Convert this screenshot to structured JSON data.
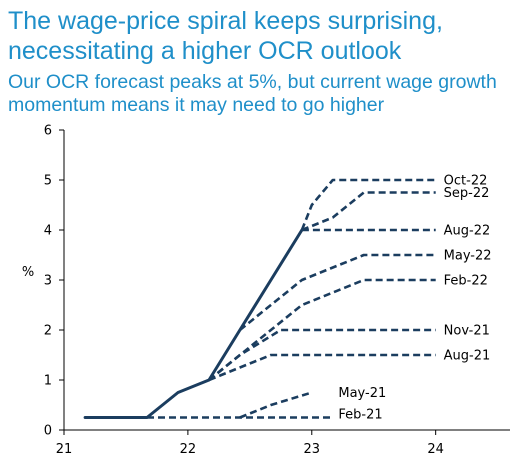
{
  "title": "The wage-price spiral keeps surprising, necessitating a higher OCR outlook",
  "subtitle": "Our OCR forecast peaks at 5%, but current wage growth momentum means it may need to go higher",
  "chart_data": {
    "type": "line",
    "ylabel": "%",
    "xlim": [
      21,
      24.6
    ],
    "ylim": [
      0,
      6
    ],
    "xticks": [
      21,
      22,
      23,
      24
    ],
    "yticks": [
      0,
      1,
      2,
      3,
      4,
      5,
      6
    ],
    "actual": {
      "x": [
        21.17,
        21.67,
        21.92,
        22.17,
        22.42,
        22.67,
        22.92
      ],
      "y": [
        0.25,
        0.25,
        0.75,
        1.0,
        2.0,
        3.0,
        4.0
      ]
    },
    "series": [
      {
        "name": "Oct-22",
        "x": [
          22.92,
          23.0,
          23.17,
          24.0
        ],
        "y": [
          4.0,
          4.5,
          5.0,
          5.0
        ]
      },
      {
        "name": "Sep-22",
        "x": [
          22.92,
          23.17,
          23.42,
          24.0
        ],
        "y": [
          4.0,
          4.25,
          4.75,
          4.75
        ]
      },
      {
        "name": "Aug-22",
        "x": [
          22.92,
          23.0,
          24.0
        ],
        "y": [
          4.0,
          4.0,
          4.0
        ]
      },
      {
        "name": "May-22",
        "x": [
          22.42,
          22.67,
          22.92,
          23.42,
          24.0
        ],
        "y": [
          2.0,
          2.5,
          3.0,
          3.5,
          3.5
        ]
      },
      {
        "name": "Feb-22",
        "x": [
          22.17,
          22.67,
          22.92,
          23.42,
          24.0
        ],
        "y": [
          1.0,
          2.0,
          2.5,
          3.0,
          3.0
        ]
      },
      {
        "name": "Nov-21",
        "x": [
          22.17,
          22.42,
          22.75,
          24.0
        ],
        "y": [
          1.0,
          1.5,
          2.0,
          2.0
        ]
      },
      {
        "name": "Aug-21",
        "x": [
          22.17,
          22.42,
          22.67,
          24.0
        ],
        "y": [
          1.0,
          1.25,
          1.5,
          1.5
        ]
      },
      {
        "name": "May-21",
        "x": [
          22.42,
          22.67,
          23.0
        ],
        "y": [
          0.25,
          0.5,
          0.75
        ]
      },
      {
        "name": "Feb-21",
        "x": [
          21.67,
          22.42,
          23.17
        ],
        "y": [
          0.25,
          0.25,
          0.25
        ]
      }
    ],
    "labels": [
      {
        "text": "Oct-22",
        "x": 24.0,
        "y": 5.0
      },
      {
        "text": "Sep-22",
        "x": 24.0,
        "y": 4.75
      },
      {
        "text": "Aug-22",
        "x": 24.0,
        "y": 4.0
      },
      {
        "text": "May-22",
        "x": 24.0,
        "y": 3.5
      },
      {
        "text": "Feb-22",
        "x": 24.0,
        "y": 3.0
      },
      {
        "text": "Nov-21",
        "x": 24.0,
        "y": 2.0
      },
      {
        "text": "Aug-21",
        "x": 24.0,
        "y": 1.5
      },
      {
        "text": "May-21",
        "x": 23.15,
        "y": 0.75
      },
      {
        "text": "Feb-21",
        "x": 23.15,
        "y": 0.32
      }
    ],
    "colors": {
      "line": "#1b3d5f",
      "axis": "#000000",
      "title": "#1f8fc9"
    }
  }
}
